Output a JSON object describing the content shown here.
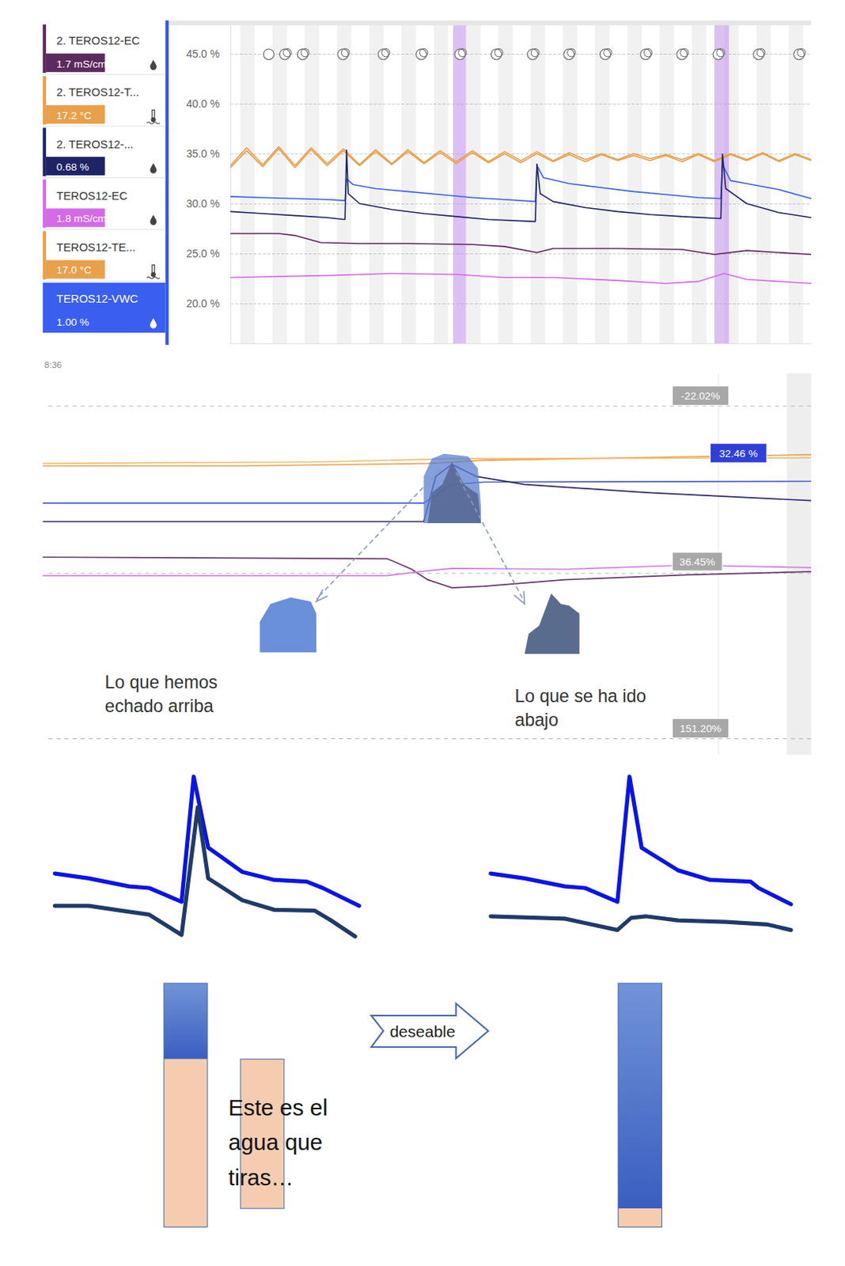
{
  "chart_data": {
    "type": "line",
    "xlim": [
      0,
      18
    ],
    "ylim": [
      16,
      48
    ],
    "yticks": [
      {
        "value": 20,
        "label": "20.0 %"
      },
      {
        "value": 25,
        "label": "25.0 %"
      },
      {
        "value": 30,
        "label": "30.0 %"
      },
      {
        "value": 35,
        "label": "35.0 %"
      },
      {
        "value": 40,
        "label": "40.0 %"
      },
      {
        "value": 45,
        "label": "45.0 %"
      }
    ],
    "grid": true,
    "tick_labels": "y",
    "highlights": [
      [
        6.9,
        7.3
      ],
      [
        15.0,
        15.45
      ]
    ],
    "series": [
      {
        "name": "2. TEROS12-EC",
        "readout": "1.7 mS/cm",
        "color": "#5c2a5e",
        "x": [
          0,
          1.5,
          2,
          2.8,
          4,
          5.5,
          7.5,
          8.5,
          9.5,
          10,
          12,
          14,
          15,
          16,
          18
        ],
        "values": [
          27.0,
          27.0,
          26.8,
          26.1,
          26.0,
          26.0,
          25.9,
          25.7,
          25.1,
          25.5,
          25.5,
          25.4,
          24.9,
          25.3,
          24.9
        ]
      },
      {
        "name": "2. TEROS12-T...",
        "readout": "17.2 °C",
        "color": "#e9a04a",
        "x": [
          0,
          0.5,
          1,
          1.5,
          2,
          2.5,
          3,
          3.5,
          4,
          4.5,
          5,
          5.5,
          6,
          6.5,
          7,
          7.5,
          8,
          8.5,
          9,
          9.5,
          10,
          10.5,
          11,
          11.5,
          12,
          12.5,
          13,
          13.5,
          14,
          14.5,
          15,
          15.5,
          16,
          16.5,
          17,
          17.5,
          18
        ],
        "values": [
          33.8,
          35.6,
          33.9,
          35.7,
          33.8,
          35.6,
          34.0,
          35.5,
          33.9,
          35.4,
          34.0,
          35.4,
          34.1,
          35.3,
          34.2,
          35.3,
          34.2,
          35.2,
          34.3,
          35.2,
          34.3,
          35.1,
          34.4,
          35.0,
          34.4,
          35.0,
          34.5,
          34.9,
          34.4,
          35.0,
          34.3,
          35.0,
          34.4,
          35.1,
          34.3,
          35.0,
          34.4
        ]
      },
      {
        "name": "2. TEROS12-...",
        "readout": "0.68 %",
        "color": "#1e2466",
        "x": [
          0,
          1,
          2,
          3,
          3.55,
          3.6,
          3.65,
          4,
          5,
          6,
          7,
          8,
          9.45,
          9.5,
          9.6,
          10,
          11,
          12,
          13,
          14,
          15.2,
          15.25,
          15.35,
          16,
          17,
          18
        ],
        "values": [
          29.2,
          29.0,
          28.8,
          28.6,
          28.4,
          35.4,
          31.0,
          30.0,
          29.4,
          29.0,
          28.7,
          28.4,
          28.2,
          34.0,
          31.0,
          30.2,
          29.6,
          29.2,
          28.9,
          28.7,
          28.5,
          35.0,
          31.5,
          30.0,
          29.1,
          28.6
        ]
      },
      {
        "name": "TEROS12-EC",
        "readout": "1.8 mS/cm",
        "color": "#d56ae6",
        "x": [
          0,
          3,
          5,
          7,
          8.5,
          10,
          12,
          13.5,
          14.5,
          15.3,
          16,
          18
        ],
        "values": [
          22.6,
          22.8,
          23.0,
          22.9,
          22.6,
          22.6,
          22.3,
          22.0,
          22.2,
          23.0,
          22.4,
          22.0
        ]
      },
      {
        "name": "TEROS12-TE...",
        "readout": "17.0 °C",
        "color": "#e9a04a",
        "x": [
          0,
          0.5,
          1,
          1.5,
          2,
          2.5,
          3,
          3.5,
          4,
          4.5,
          5,
          5.5,
          6,
          6.5,
          7,
          7.5,
          8,
          8.5,
          9,
          9.5,
          10,
          10.5,
          11,
          11.5,
          12,
          12.5,
          13,
          13.5,
          14,
          14.5,
          15,
          15.5,
          16,
          16.5,
          17,
          17.5,
          18
        ],
        "values": [
          33.6,
          35.3,
          33.7,
          35.5,
          33.6,
          35.4,
          33.8,
          35.3,
          33.8,
          35.2,
          33.9,
          35.2,
          34.0,
          35.1,
          34.0,
          35.1,
          34.1,
          35.0,
          34.1,
          35.0,
          34.2,
          34.9,
          34.2,
          34.9,
          34.3,
          34.8,
          34.3,
          34.8,
          34.2,
          34.9,
          34.2,
          34.9,
          34.3,
          35.0,
          34.2,
          34.9,
          34.3
        ]
      },
      {
        "name": "TEROS12-VWC",
        "readout": "1.00 %",
        "color": "#3a5ff0",
        "x": [
          0,
          1,
          2,
          3,
          3.55,
          3.6,
          3.8,
          4.5,
          5.5,
          6.5,
          7.5,
          8.5,
          9.45,
          9.5,
          9.7,
          10.5,
          11.5,
          12.5,
          13.5,
          14.5,
          15.2,
          15.25,
          15.5,
          16,
          17,
          18
        ],
        "values": [
          30.7,
          30.6,
          30.5,
          30.4,
          30.3,
          32.5,
          31.9,
          31.5,
          31.2,
          30.9,
          30.6,
          30.4,
          30.2,
          33.8,
          32.6,
          32.0,
          31.6,
          31.2,
          30.9,
          30.6,
          30.5,
          33.9,
          32.3,
          32.0,
          31.4,
          30.5
        ]
      }
    ]
  },
  "zoom_panel": {
    "time": "8:36",
    "readouts": [
      "-22.02%",
      "32.46 %",
      "36.45%",
      "151.20%"
    ],
    "annotations": [
      [
        "Lo que hemos",
        "echado arriba"
      ],
      [
        "Lo que se ha ido",
        "abajo"
      ]
    ]
  },
  "sketch": {
    "note": [
      "Este es el",
      "agua que",
      "tiras…"
    ],
    "arrow_label": "deseable"
  }
}
